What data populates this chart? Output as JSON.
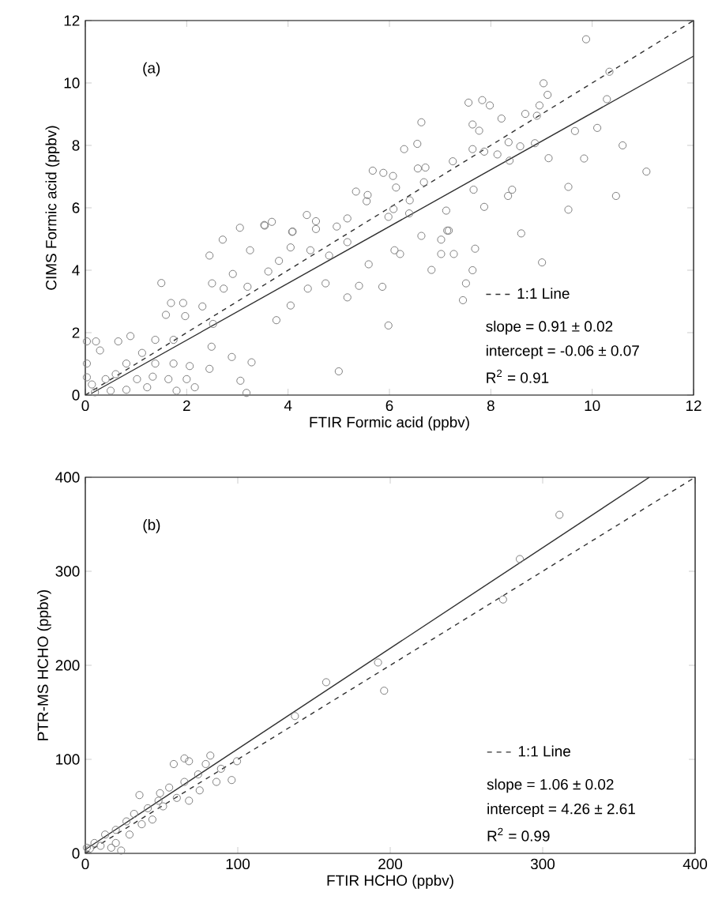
{
  "chart_data": [
    {
      "type": "scatter",
      "xlabel": "FTIR Formic acid (ppbv)",
      "ylabel": "CIMS Formic acid (ppbv)",
      "xlim": [
        0,
        12
      ],
      "ylim": [
        0,
        12
      ],
      "xticks": [
        0,
        2,
        4,
        6,
        8,
        10,
        12
      ],
      "yticks": [
        0,
        2,
        4,
        6,
        8,
        10,
        12
      ],
      "legend": "bottom right",
      "annotations": [
        "(a)",
        "slope = 0.91 ± 0.02",
        "intercept = -0.06 ± 0.07",
        "R$^{2}$ = 0.91"
      ],
      "series": [
        {
          "color": "#808080",
          "marker": "circle",
          "x": [
            9.88,
            10.34,
            10.29,
            9.04,
            9.12,
            8.96,
            8.68,
            8.91,
            7.56,
            7.83,
            7.98,
            8.21,
            7.64,
            7.77,
            6.63,
            6.55,
            6.29,
            7.64,
            7.87,
            8.13,
            8.35,
            8.58,
            8.87,
            9.66,
            10.1,
            10.6,
            9.14,
            9.84,
            8.37,
            11.07,
            7.25,
            6.56,
            6.71,
            6.68,
            5.67,
            5.88,
            6.07,
            6.13,
            5.34,
            5.57,
            5.55,
            6.4,
            7.66,
            8.42,
            8.34,
            9.53,
            10.47,
            7.12,
            7.87,
            9.53,
            6.39,
            5.98,
            6.08,
            4.37,
            4.55,
            5.17,
            3.53,
            3.68,
            3.05,
            4.09,
            6.63,
            7.14,
            8.6,
            3.54,
            2.71,
            3.25,
            2.45,
            4.08,
            4.55,
            4.96,
            4.05,
            4.44,
            4.81,
            5.17,
            7.02,
            7.17,
            6.1,
            7.02,
            7.27,
            7.69,
            6.21,
            5.59,
            6.83,
            7.64,
            9.01,
            2.91,
            3.61,
            3.82,
            3.2,
            2.5,
            2.73,
            1.5,
            4.39,
            4.74,
            5.4,
            5.86,
            5.17,
            7.51,
            7.45,
            5.98,
            4.05,
            3.77,
            1.69,
            1.93,
            1.59,
            1.97,
            2.31,
            2.52,
            2.49,
            2.89,
            3.28,
            2.45,
            3.06,
            3.18,
            5.0,
            1.74,
            1.38,
            0.89,
            0.65,
            0.03,
            0.21,
            0.29,
            0.03,
            0.03,
            0.4,
            0.81,
            1.12,
            1.38,
            1.74,
            2.06,
            2.0,
            1.64,
            1.22,
            0.81,
            0.5,
            0.19,
            2.16,
            1.8,
            1.02,
            0.6,
            1.33,
            0.13
          ],
          "values": [
            11.4,
            10.36,
            9.48,
            9.99,
            9.62,
            9.28,
            9.01,
            8.95,
            9.37,
            9.45,
            9.28,
            8.86,
            8.67,
            8.47,
            8.74,
            8.05,
            7.88,
            7.88,
            7.8,
            7.71,
            8.1,
            7.97,
            8.07,
            8.46,
            8.56,
            8.0,
            7.59,
            7.58,
            7.51,
            7.16,
            7.49,
            7.26,
            7.29,
            6.82,
            7.19,
            7.12,
            7.02,
            6.65,
            6.52,
            6.41,
            6.21,
            6.24,
            6.58,
            6.58,
            6.38,
            6.67,
            6.38,
            5.91,
            6.03,
            5.94,
            5.82,
            5.71,
            5.96,
            5.77,
            5.57,
            5.66,
            5.45,
            5.55,
            5.36,
            5.24,
            5.1,
            5.27,
            5.18,
            5.43,
            4.98,
            4.64,
            4.47,
            5.23,
            5.32,
            5.4,
            4.73,
            4.64,
            4.47,
            4.9,
            4.98,
            5.27,
            4.64,
            4.52,
            4.52,
            4.69,
            4.52,
            4.19,
            4.01,
            4.0,
            4.25,
            3.88,
            3.96,
            4.3,
            3.47,
            3.58,
            3.41,
            3.59,
            3.41,
            3.58,
            3.5,
            3.47,
            3.13,
            3.58,
            3.04,
            2.23,
            2.87,
            2.4,
            2.95,
            2.95,
            2.57,
            2.53,
            2.84,
            2.28,
            1.55,
            1.22,
            1.05,
            0.84,
            0.46,
            0.07,
            0.76,
            1.77,
            1.77,
            1.89,
            1.72,
            1.72,
            1.72,
            1.43,
            1.01,
            0.57,
            0.51,
            1.01,
            1.35,
            1.01,
            1.01,
            0.93,
            0.51,
            0.51,
            0.25,
            0.17,
            0.14,
            0.09,
            0.25,
            0.14,
            0.51,
            0.67,
            0.59,
            0.34
          ]
        },
        {
          "type": "line",
          "name": "1:1 Line",
          "color": "#303030",
          "line_style": "dashed",
          "x": [
            0,
            12
          ],
          "values": [
            0,
            12
          ]
        },
        {
          "type": "line",
          "color": "#303030",
          "line_style": "solid",
          "x": [
            0.12,
            12
          ],
          "values": [
            0.05,
            10.86
          ]
        }
      ]
    },
    {
      "type": "scatter",
      "xlabel": "FTIR HCHO (ppbv)",
      "ylabel": "PTR-MS HCHO (ppbv)",
      "xlim": [
        0,
        400
      ],
      "ylim": [
        0,
        400
      ],
      "xticks": [
        0,
        100,
        200,
        300,
        400
      ],
      "yticks": [
        0,
        100,
        200,
        300,
        400
      ],
      "legend": "bottom right",
      "annotations": [
        "(b)",
        "slope = 1.06 ± 0.02",
        "intercept = 4.26 ± 2.61",
        "R$^{2}$ = 0.99"
      ],
      "series": [
        {
          "color": "#808080",
          "marker": "circle",
          "x": [
            311,
            285,
            274,
            192,
            196,
            158,
            137.5,
            58,
            68,
            79,
            89,
            96,
            86,
            74,
            65,
            55,
            60,
            68,
            48,
            41,
            32,
            27,
            20,
            13,
            6,
            1,
            17,
            23.5,
            10,
            37,
            44,
            35.5,
            49,
            75,
            82,
            65,
            99.5,
            51,
            29,
            20,
            3
          ],
          "values": [
            360,
            313,
            270,
            203,
            173,
            182,
            146,
            95,
            98,
            95,
            90,
            78,
            76,
            84,
            76,
            70,
            59,
            56,
            56,
            48,
            42,
            34,
            25,
            20,
            11,
            6,
            6,
            3,
            8,
            31,
            36,
            62,
            64,
            67,
            104,
            101,
            98,
            50,
            20,
            11,
            5
          ]
        },
        {
          "type": "line",
          "name": "1:1 Line",
          "color": "#303030",
          "line_style": "dashed",
          "x": [
            0,
            400
          ],
          "values": [
            0,
            400
          ]
        },
        {
          "type": "line",
          "color": "#303030",
          "line_style": "solid",
          "x": [
            0,
            370
          ],
          "values": [
            4,
            400
          ]
        }
      ]
    }
  ]
}
